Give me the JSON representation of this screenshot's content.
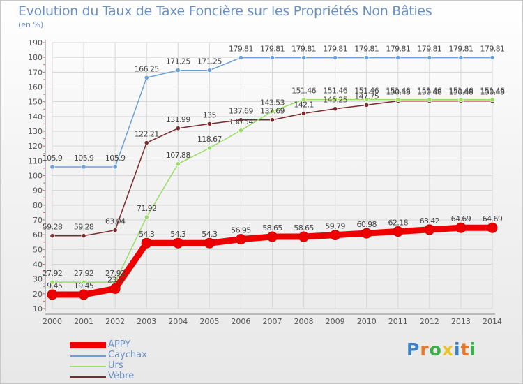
{
  "title": "Evolution du Taux de Taxe Foncière sur les Propriétés Non Bâties",
  "subtitle": "(en %)",
  "brand": "Proxiti",
  "chart_data": {
    "type": "line",
    "title": "Evolution du Taux de Taxe Foncière sur les Propriétés Non Bâties",
    "ylabel": "(en %)",
    "xlabel": "",
    "ylim": [
      10,
      190
    ],
    "yticks": [
      10,
      20,
      30,
      40,
      50,
      60,
      70,
      80,
      90,
      100,
      110,
      120,
      130,
      140,
      150,
      160,
      170,
      180,
      190
    ],
    "categories": [
      "2000",
      "2001",
      "2002",
      "2003",
      "2004",
      "2005",
      "2006",
      "2007",
      "2008",
      "2009",
      "2010",
      "2011",
      "2012",
      "2013",
      "2014"
    ],
    "grid": true,
    "legend_position": "bottom-left",
    "series": [
      {
        "name": "APPY",
        "color": "#ee0000",
        "values": [
          19.45,
          19.45,
          23.5,
          54.3,
          54.3,
          54.3,
          56.95,
          58.65,
          58.65,
          59.79,
          60.98,
          62.18,
          63.42,
          64.69,
          64.69
        ],
        "labels": [
          "19.45",
          "19.45",
          "23.5",
          "54.3",
          "54.3",
          "54.3",
          "56.95",
          "58.65",
          "58.65",
          "59.79",
          "60.98",
          "62.18",
          "63.42",
          "64.69",
          "64.69"
        ]
      },
      {
        "name": "Caychax",
        "color": "#6a9fd8",
        "values": [
          105.9,
          105.9,
          105.9,
          166.25,
          171.25,
          171.25,
          179.81,
          179.81,
          179.81,
          179.81,
          179.81,
          179.81,
          179.81,
          179.81,
          179.81
        ],
        "labels": [
          "105.9",
          "105.9",
          "105.9",
          "166.25",
          "171.25",
          "171.25",
          "179.81",
          "179.81",
          "179.81",
          "179.81",
          "179.81",
          "179.81",
          "179.81",
          "179.81",
          "179.81"
        ]
      },
      {
        "name": "Urs",
        "color": "#99dd66",
        "values": [
          27.92,
          27.92,
          27.92,
          71.92,
          107.88,
          118.67,
          130.54,
          143.53,
          151.46,
          151.46,
          151.46,
          151.46,
          151.46,
          151.46,
          151.46
        ],
        "labels": [
          "27.92",
          "27.92",
          "27.92",
          "71.92",
          "107.88",
          "118.67",
          "130.54",
          "143.53",
          "151.46",
          "151.46",
          "151.46",
          "151.46",
          "151.46",
          "151.46",
          "151.46"
        ]
      },
      {
        "name": "Vèbre",
        "color": "#7a2a2a",
        "values": [
          59.28,
          59.28,
          63.04,
          122.21,
          131.99,
          135,
          137.69,
          137.69,
          142.1,
          145.25,
          147.75,
          150.48,
          150.48,
          150.48,
          150.48
        ],
        "labels": [
          "59.28",
          "59.28",
          "63.04",
          "122.21",
          "131.99",
          "135",
          "137.69",
          "137.69",
          "142.1",
          "145.25",
          "147.75",
          "150.48",
          "150.48",
          "150.48",
          "150.48"
        ]
      }
    ]
  }
}
